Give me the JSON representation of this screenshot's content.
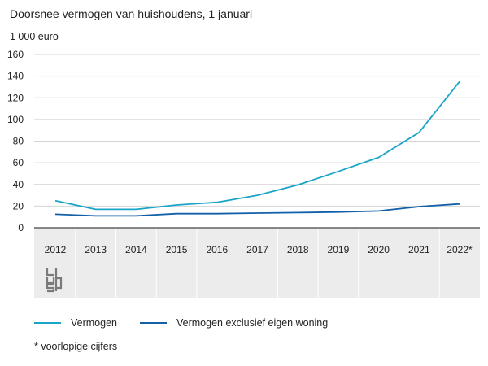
{
  "title": "Doorsnee vermogen van huishoudens, 1 januari",
  "footnote": "* voorlopige cijfers",
  "logo": "cbs",
  "colors": {
    "vermogen": "#1aa5c8",
    "exclusief": "#1460a8",
    "gridline": "#d4d4d4",
    "axis": "#444444",
    "xband": "#ececec"
  },
  "chart_data": {
    "type": "line",
    "title": "Doorsnee vermogen van huishoudens, 1 januari",
    "ylabel": "1 000 euro",
    "xlabel": "",
    "ylim": [
      0,
      160
    ],
    "yticks": [
      0,
      20,
      40,
      60,
      80,
      100,
      120,
      140,
      160
    ],
    "categories": [
      "2012",
      "2013",
      "2014",
      "2015",
      "2016",
      "2017",
      "2018",
      "2019",
      "2020",
      "2021",
      "2022*"
    ],
    "series": [
      {
        "name": "Vermogen",
        "color": "#1aa5c8",
        "values": [
          25,
          17,
          17,
          21,
          23.5,
          30,
          39.5,
          52,
          65,
          88,
          135
        ]
      },
      {
        "name": "Vermogen exclusief eigen woning",
        "color": "#1460a8",
        "values": [
          12.5,
          11,
          11,
          13,
          13,
          13.5,
          14,
          14.5,
          15.5,
          19.5,
          22
        ]
      }
    ],
    "grid": true,
    "legend": "bottom-left"
  }
}
